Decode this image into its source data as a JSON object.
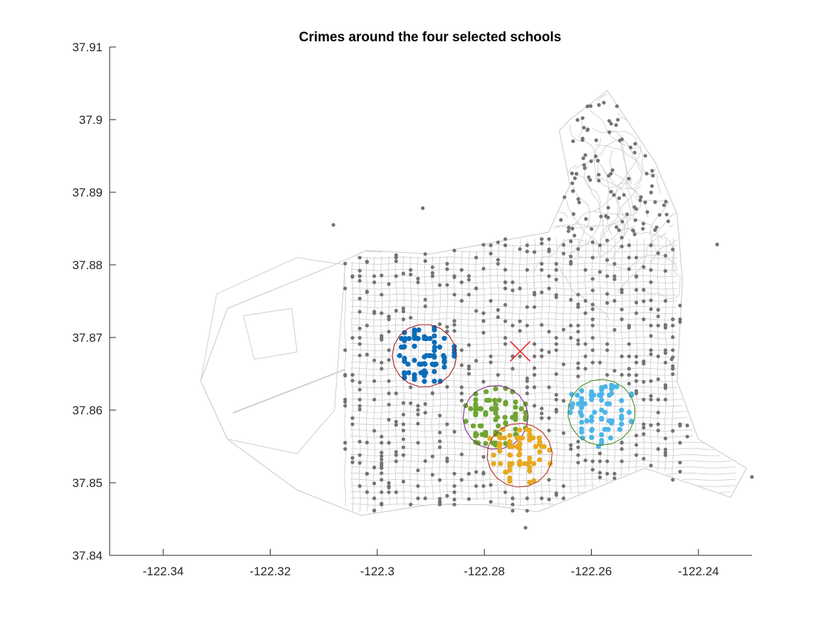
{
  "chart_data": {
    "type": "scatter",
    "title": "Crimes around the four selected schools",
    "xlim": [
      -122.35,
      -122.23
    ],
    "ylim": [
      37.84,
      37.91
    ],
    "xticks": [
      "-122.34",
      "-122.32",
      "-122.3",
      "-122.28",
      "-122.26",
      "-122.24"
    ],
    "yticks": [
      "37.84",
      "37.85",
      "37.86",
      "37.87",
      "37.88",
      "37.89",
      "37.9",
      "37.91"
    ],
    "grid": false,
    "legend": "none",
    "colors": {
      "street": "#cfcfcf",
      "crime_other": "#737373",
      "blue": "#0b6db8",
      "green": "#6fa533",
      "orange": "#e8a920",
      "cyan": "#4cb5e8",
      "marker": "#e8231f",
      "circle_blue": "#a01818",
      "circle_green": "#7a2b88",
      "circle_orange": "#b53018",
      "circle_cyan": "#4a8a2a"
    },
    "marker_x": [
      -122.2733,
      37.8681
    ],
    "clusters": [
      {
        "center": [
          -122.2912,
          37.8675
        ],
        "radius": 0.006
      },
      {
        "center": [
          -122.2779,
          37.859
        ],
        "radius": 0.0061
      },
      {
        "center": [
          -122.2734,
          37.8538
        ],
        "radius": 0.0061
      },
      {
        "center": [
          -122.2581,
          37.8597
        ],
        "radius": 0.0063
      }
    ],
    "boundary": [
      [
        -122.29,
        37.8815
      ],
      [
        -122.268,
        37.8845
      ],
      [
        -122.264,
        37.891
      ],
      [
        -122.266,
        37.8985
      ],
      [
        -122.264,
        37.9
      ],
      [
        -122.257,
        37.904
      ],
      [
        -122.248,
        37.894
      ],
      [
        -122.244,
        37.887
      ],
      [
        -122.243,
        37.878
      ],
      [
        -122.244,
        37.864
      ],
      [
        -122.24,
        37.856
      ],
      [
        -122.231,
        37.852
      ],
      [
        -122.234,
        37.848
      ],
      [
        -122.25,
        37.852
      ],
      [
        -122.26,
        37.849
      ],
      [
        -122.27,
        37.846
      ],
      [
        -122.28,
        37.847
      ],
      [
        -122.29,
        37.847
      ],
      [
        -122.303,
        37.8455
      ],
      [
        -122.315,
        37.849
      ],
      [
        -122.328,
        37.856
      ],
      [
        -122.333,
        37.864
      ],
      [
        -122.328,
        37.874
      ],
      [
        -122.308,
        37.88
      ],
      [
        -122.302,
        37.882
      ],
      [
        -122.29,
        37.8815
      ]
    ]
  }
}
